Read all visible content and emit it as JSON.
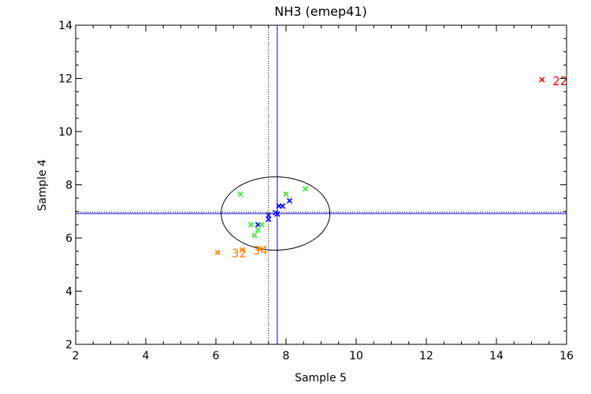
{
  "chart_data": {
    "type": "scatter",
    "title": "NH3 (emep41)",
    "xlabel": "Sample 5",
    "ylabel": "Sample 4",
    "xlim": [
      2,
      16
    ],
    "ylim": [
      2,
      14
    ],
    "xticks": [
      "2",
      "4",
      "6",
      "8",
      "10",
      "12",
      "14",
      "16"
    ],
    "yticks": [
      "2",
      "4",
      "6",
      "8",
      "10",
      "12",
      "14"
    ],
    "grid": false,
    "colors": {
      "blue": "#0000ff",
      "green": "#33ee33",
      "orange": "#ff8000",
      "red": "#ff0000"
    },
    "reference_lines": [
      {
        "orientation": "vertical",
        "value": 7.75,
        "style": "solid",
        "color": "#0000ff"
      },
      {
        "orientation": "vertical",
        "value": 7.5,
        "style": "dotted",
        "color": "#000000"
      },
      {
        "orientation": "horizontal",
        "value": 6.92,
        "style": "solid",
        "color": "#0000ff"
      },
      {
        "orientation": "horizontal",
        "value": 6.97,
        "style": "dotted",
        "color": "#000000"
      }
    ],
    "ellipse": {
      "cx": 7.7,
      "cy": 6.92,
      "rx": 1.55,
      "ry": 1.38,
      "color": "#000000"
    },
    "series": [
      {
        "color": "#0000ff",
        "points": [
          {
            "x": 7.2,
            "y": 6.5
          },
          {
            "x": 7.5,
            "y": 6.7
          },
          {
            "x": 7.5,
            "y": 6.85
          },
          {
            "x": 7.7,
            "y": 6.95
          },
          {
            "x": 7.75,
            "y": 6.9
          },
          {
            "x": 7.8,
            "y": 7.2
          },
          {
            "x": 7.9,
            "y": 7.2
          },
          {
            "x": 8.1,
            "y": 7.4
          }
        ]
      },
      {
        "color": "#33ee33",
        "points": [
          {
            "x": 6.7,
            "y": 7.65
          },
          {
            "x": 7.0,
            "y": 6.5
          },
          {
            "x": 7.1,
            "y": 6.1
          },
          {
            "x": 7.2,
            "y": 6.3
          },
          {
            "x": 7.3,
            "y": 6.5
          },
          {
            "x": 8.0,
            "y": 7.65
          },
          {
            "x": 8.55,
            "y": 7.85
          }
        ]
      },
      {
        "color": "#ff8000",
        "points": [
          {
            "x": 6.05,
            "y": 5.45
          },
          {
            "x": 6.75,
            "y": 5.55
          },
          {
            "x": 7.25,
            "y": 5.6
          }
        ]
      },
      {
        "color": "#ff0000",
        "points": [
          {
            "x": 15.3,
            "y": 11.95
          }
        ]
      }
    ],
    "annotations": [
      {
        "text": "32",
        "x": 6.45,
        "y": 5.42,
        "color": "#ff8000"
      },
      {
        "text": "34",
        "x": 7.05,
        "y": 5.52,
        "color": "#ff8000"
      },
      {
        "text": "22",
        "x": 15.6,
        "y": 11.9,
        "color": "#ff0000"
      }
    ]
  }
}
